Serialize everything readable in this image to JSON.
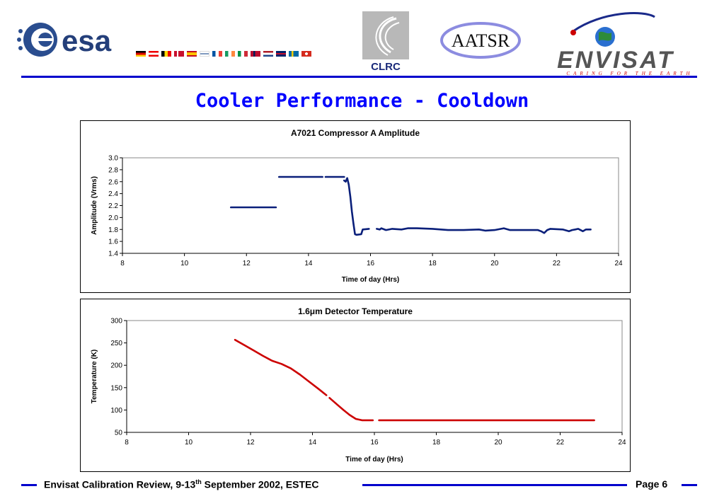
{
  "header": {
    "esa_logo": "esa",
    "clrc_logo": "CLRC",
    "aatsr_logo": "AATSR",
    "envisat_logo": "ENVISAT",
    "envisat_tagline": "CARING FOR THE EARTH",
    "flags": [
      "germany",
      "austria",
      "belgium",
      "denmark",
      "spain",
      "finland",
      "france",
      "ireland",
      "italy",
      "norway",
      "netherlands",
      "uk",
      "sweden",
      "switzerland"
    ]
  },
  "slide": {
    "title": "Cooler Performance - Cooldown"
  },
  "chart_data": [
    {
      "type": "scatter",
      "title": "A7021 Compressor A Amplitude",
      "xlabel": "Time of day (Hrs)",
      "ylabel": "Amplitude (Vrms)",
      "xlim": [
        8,
        24
      ],
      "ylim": [
        1.4,
        3.0
      ],
      "xticks": [
        8,
        10,
        12,
        14,
        16,
        18,
        20,
        22,
        24
      ],
      "yticks": [
        1.4,
        1.6,
        1.8,
        2.0,
        2.2,
        2.4,
        2.6,
        2.8,
        3.0
      ],
      "ytick_labels": [
        "1.4",
        "1.6",
        "1.8",
        "2.0",
        "2.2",
        "2.4",
        "2.6",
        "2.8",
        "3.0"
      ],
      "grid": false,
      "color": "#0a1f7a",
      "series": [
        {
          "segments": [
            [
              [
                11.5,
                2.17
              ],
              [
                12.95,
                2.17
              ]
            ],
            [
              [
                13.05,
                2.68
              ],
              [
                14.45,
                2.68
              ]
            ],
            [
              [
                14.55,
                2.68
              ],
              [
                15.15,
                2.68
              ]
            ],
            [
              [
                15.15,
                2.62
              ],
              [
                15.2,
                2.6
              ],
              [
                15.25,
                2.66
              ],
              [
                15.3,
                2.55
              ],
              [
                15.35,
                2.35
              ],
              [
                15.4,
                2.1
              ],
              [
                15.45,
                1.9
              ],
              [
                15.5,
                1.72
              ],
              [
                15.55,
                1.71
              ]
            ],
            [
              [
                15.55,
                1.71
              ],
              [
                15.7,
                1.72
              ],
              [
                15.75,
                1.8
              ],
              [
                15.95,
                1.81
              ]
            ],
            [
              [
                16.2,
                1.81
              ],
              [
                16.3,
                1.8
              ],
              [
                16.35,
                1.82
              ],
              [
                16.5,
                1.79
              ],
              [
                16.7,
                1.81
              ],
              [
                17.0,
                1.8
              ],
              [
                17.2,
                1.82
              ],
              [
                17.5,
                1.82
              ],
              [
                18.0,
                1.81
              ],
              [
                18.5,
                1.79
              ],
              [
                19.0,
                1.79
              ],
              [
                19.5,
                1.8
              ],
              [
                19.7,
                1.78
              ],
              [
                20.0,
                1.79
              ],
              [
                20.3,
                1.82
              ],
              [
                20.5,
                1.79
              ],
              [
                21.0,
                1.79
              ],
              [
                21.4,
                1.79
              ],
              [
                21.5,
                1.77
              ],
              [
                21.6,
                1.74
              ],
              [
                21.7,
                1.79
              ],
              [
                21.8,
                1.81
              ],
              [
                22.2,
                1.8
              ],
              [
                22.4,
                1.77
              ],
              [
                22.5,
                1.79
              ],
              [
                22.6,
                1.8
              ],
              [
                22.7,
                1.81
              ],
              [
                22.85,
                1.77
              ],
              [
                22.95,
                1.8
              ],
              [
                23.1,
                1.8
              ]
            ]
          ]
        }
      ]
    },
    {
      "type": "scatter",
      "title": "1.6μm Detector Temperature",
      "xlabel": "Time of day (Hrs)",
      "ylabel": "Temperature (K)",
      "xlim": [
        8,
        24
      ],
      "ylim": [
        50,
        300
      ],
      "xticks": [
        8,
        10,
        12,
        14,
        16,
        18,
        20,
        22,
        24
      ],
      "yticks": [
        50,
        100,
        150,
        200,
        250,
        300
      ],
      "ytick_labels": [
        "50",
        "100",
        "150",
        "200",
        "250",
        "300"
      ],
      "grid": false,
      "color": "#cc0000",
      "series": [
        {
          "segments": [
            [
              [
                11.5,
                257
              ],
              [
                11.8,
                245
              ],
              [
                12.1,
                233
              ],
              [
                12.4,
                221
              ],
              [
                12.7,
                210
              ],
              [
                13.0,
                203
              ],
              [
                13.3,
                193
              ],
              [
                13.6,
                179
              ],
              [
                13.9,
                163
              ],
              [
                14.2,
                147
              ],
              [
                14.45,
                133
              ]
            ],
            [
              [
                14.55,
                127
              ],
              [
                14.8,
                112
              ],
              [
                15.0,
                100
              ],
              [
                15.2,
                89
              ],
              [
                15.4,
                80
              ],
              [
                15.6,
                77
              ],
              [
                15.75,
                77
              ],
              [
                15.95,
                77
              ]
            ],
            [
              [
                16.15,
                77
              ],
              [
                17.0,
                77
              ],
              [
                18.0,
                77
              ],
              [
                19.0,
                77
              ],
              [
                20.0,
                77
              ],
              [
                21.0,
                77
              ],
              [
                22.0,
                77
              ],
              [
                23.1,
                77
              ]
            ]
          ]
        }
      ]
    }
  ],
  "footer": {
    "left_text_prefix": "Envisat Calibration Review, 9-13",
    "left_text_sup": "th",
    "left_text_suffix": " September 2002,  ESTEC",
    "page": "Page 6"
  }
}
